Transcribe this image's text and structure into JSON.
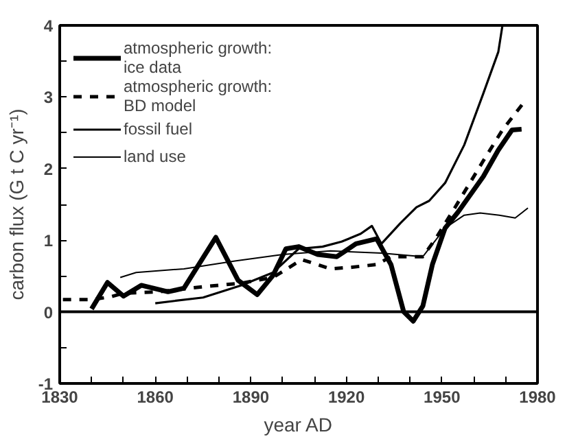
{
  "chart_data": {
    "type": "line",
    "xlabel": "year AD",
    "ylabel": "carbon flux (G t C yr⁻¹)",
    "xlim": [
      1830,
      1980
    ],
    "ylim": [
      -1,
      4
    ],
    "xticks": [
      1830,
      {
        "value": 1840,
        "label": null
      },
      {
        "value": 1850,
        "label": null
      },
      1860,
      {
        "value": 1870,
        "label": null
      },
      {
        "value": 1880,
        "label": null
      },
      1890,
      {
        "value": 1900,
        "label": null
      },
      {
        "value": 1910,
        "label": null
      },
      1920,
      {
        "value": 1930,
        "label": null
      },
      {
        "value": 1940,
        "label": null
      },
      1950,
      {
        "value": 1960,
        "label": null
      },
      {
        "value": 1970,
        "label": null
      },
      1980
    ],
    "yticks": [
      -1,
      {
        "value": -0.5,
        "label": null
      },
      0,
      {
        "value": 0.5,
        "label": null
      },
      1,
      {
        "value": 1.5,
        "label": null
      },
      2,
      {
        "value": 2.5,
        "label": null
      },
      3,
      {
        "value": 3.5,
        "label": null
      },
      4
    ],
    "grid": false,
    "legend": "top left",
    "ref_lines": [
      {
        "axis": "y",
        "value": 0,
        "label": null,
        "color": "#000000"
      }
    ],
    "series": [
      {
        "name": "atmospheric growth:\nice data",
        "color": "#000000",
        "line_style": "solid",
        "x": [
          1840,
          1845,
          1850,
          1855.6,
          1864,
          1869,
          1879,
          1886,
          1892,
          1897,
          1901,
          1905,
          1911,
          1917,
          1923,
          1929.5,
          1934,
          1938,
          1941,
          1944,
          1947,
          1951,
          1955,
          1963,
          1967.7,
          1972,
          1975
        ],
        "values": [
          0.04,
          0.41,
          0.22,
          0.37,
          0.28,
          0.33,
          1.04,
          0.44,
          0.24,
          0.51,
          0.88,
          0.91,
          0.8,
          0.77,
          0.95,
          1.02,
          0.66,
          0.0,
          -0.13,
          0.08,
          0.66,
          1.17,
          1.39,
          1.89,
          2.26,
          2.54,
          2.55
        ]
      },
      {
        "name": "atmospheric growth:\nBD model",
        "color": "#000000",
        "line_style": "dashed",
        "x": [
          1831,
          1840,
          1846,
          1850,
          1861,
          1875,
          1887,
          1897,
          1906,
          1915,
          1921,
          1929.5,
          1934,
          1944,
          1948,
          1954,
          1963,
          1969,
          1976
        ],
        "values": [
          0.17,
          0.17,
          0.21,
          0.26,
          0.28,
          0.35,
          0.4,
          0.48,
          0.73,
          0.6,
          0.62,
          0.66,
          0.77,
          0.77,
          1.02,
          1.45,
          2.11,
          2.54,
          2.94
        ]
      },
      {
        "name": "fossil fuel",
        "color": "#000000",
        "line_style": "solid",
        "x": [
          1860,
          1875,
          1887,
          1897,
          1905,
          1912.5,
          1918.5,
          1924.5,
          1928,
          1931,
          1937,
          1942,
          1946,
          1951,
          1957,
          1963,
          1967.7,
          1969
        ],
        "values": [
          0.12,
          0.2,
          0.37,
          0.55,
          0.88,
          0.91,
          0.98,
          1.09,
          1.2,
          0.95,
          1.24,
          1.46,
          1.55,
          1.8,
          2.33,
          3.05,
          3.63,
          4.0
        ]
      },
      {
        "name": "land use",
        "color": "#000000",
        "line_style": "solid",
        "x": [
          1849,
          1854,
          1869,
          1885,
          1900,
          1915,
          1931,
          1944,
          1951,
          1957,
          1962,
          1968,
          1973,
          1977
        ],
        "values": [
          0.48,
          0.55,
          0.6,
          0.71,
          0.8,
          0.85,
          0.82,
          0.77,
          1.17,
          1.35,
          1.38,
          1.35,
          1.31,
          1.45
        ]
      }
    ]
  }
}
